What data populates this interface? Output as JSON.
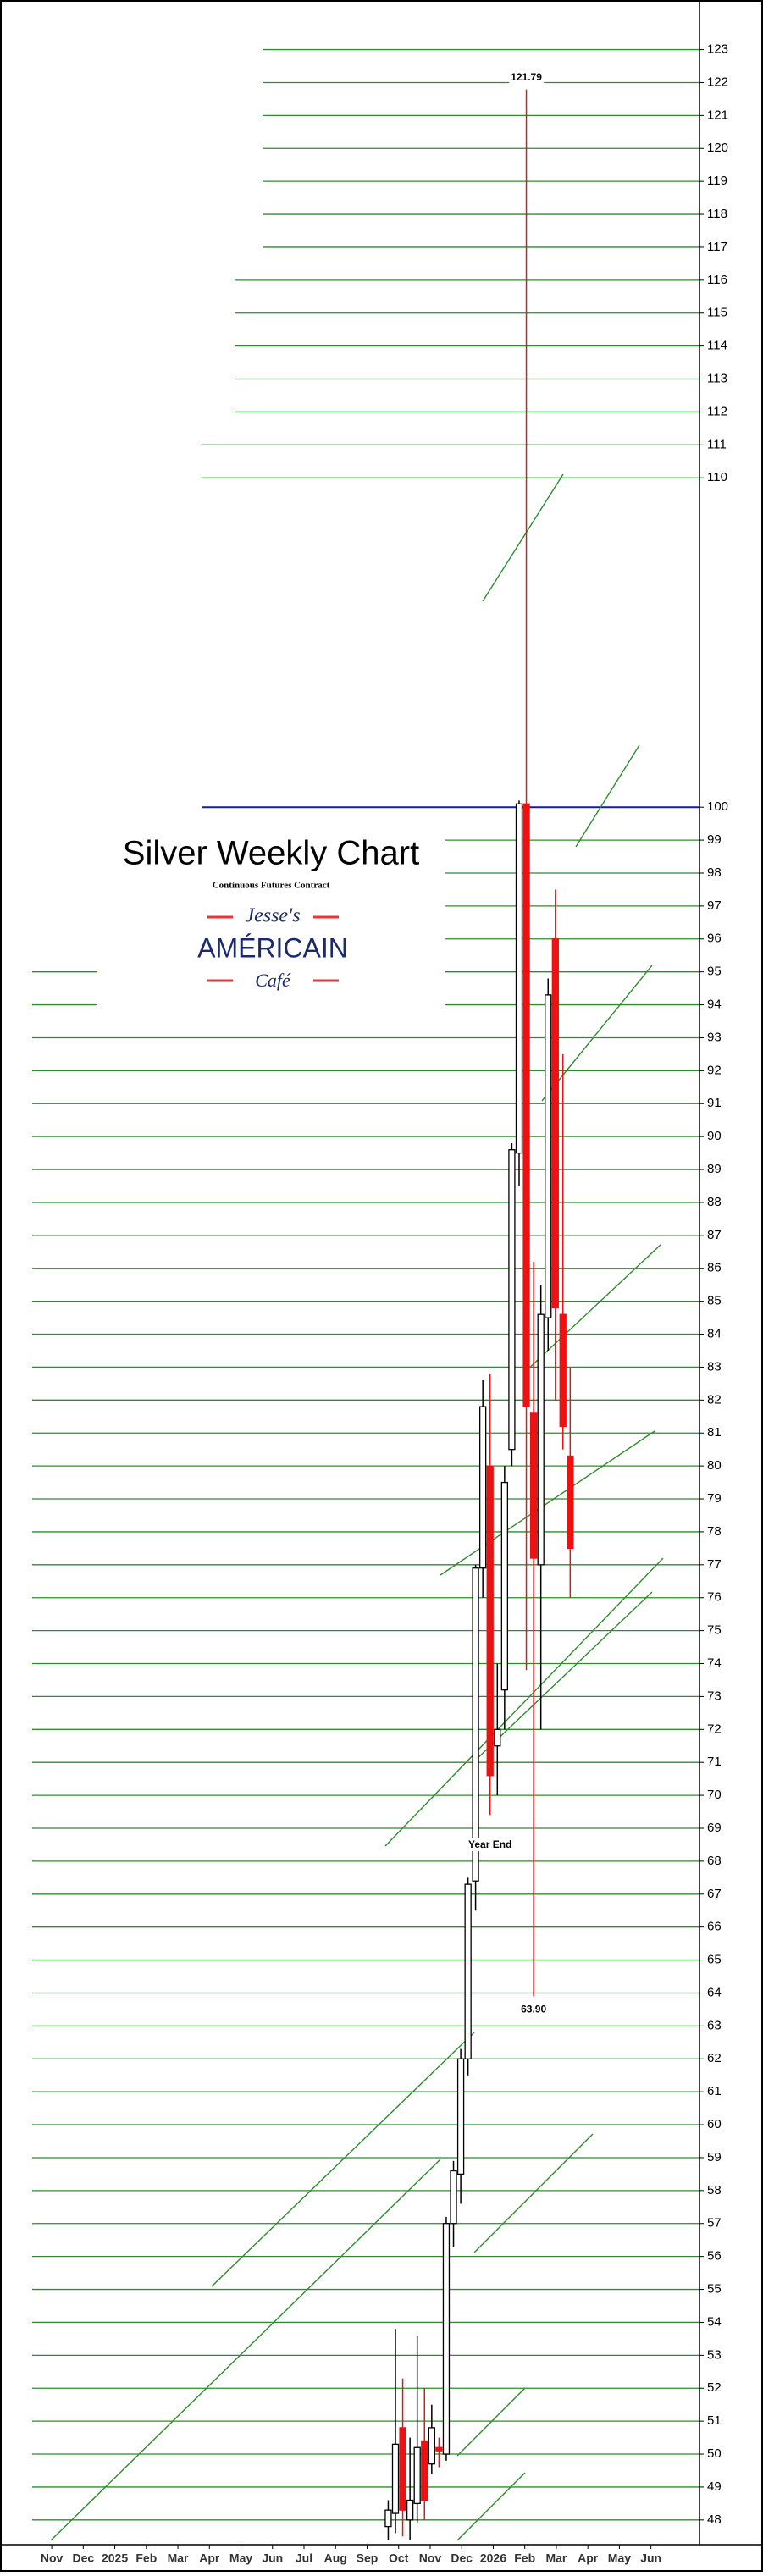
{
  "chart_data": {
    "type": "candlestick",
    "title": "Silver Weekly Chart",
    "subtitle": "Continuous Futures Contract",
    "logo": [
      "Jesse's",
      "AMÉRICAIN",
      "Café"
    ],
    "xlim": [
      -0.62,
      20.54
    ],
    "xticks": [
      {
        "value": 0,
        "label": "Nov"
      },
      {
        "value": 1,
        "label": "Dec"
      },
      {
        "value": 2,
        "label": "2025"
      },
      {
        "value": 3,
        "label": "Feb"
      },
      {
        "value": 4,
        "label": "Mar"
      },
      {
        "value": 5,
        "label": "Apr"
      },
      {
        "value": 6,
        "label": "May"
      },
      {
        "value": 7,
        "label": "Jun"
      },
      {
        "value": 8,
        "label": "Jul"
      },
      {
        "value": 9,
        "label": "Aug"
      },
      {
        "value": 10,
        "label": "Sep"
      },
      {
        "value": 11,
        "label": "Oct"
      },
      {
        "value": 12,
        "label": "Nov"
      },
      {
        "value": 13,
        "label": "Dec"
      },
      {
        "value": 14,
        "label": "2026"
      },
      {
        "value": 15,
        "label": "Feb"
      },
      {
        "value": 16,
        "label": "Mar"
      },
      {
        "value": 17,
        "label": "Apr"
      },
      {
        "value": 18,
        "label": "May"
      },
      {
        "value": 19,
        "label": "Jun"
      }
    ],
    "ylim": [
      47.25,
      124.3
    ],
    "yticks": [
      48,
      49,
      50,
      51,
      52,
      53,
      54,
      55,
      56,
      57,
      58,
      59,
      60,
      61,
      62,
      63,
      64,
      65,
      66,
      67,
      68,
      69,
      70,
      71,
      72,
      73,
      74,
      75,
      76,
      77,
      78,
      79,
      80,
      81,
      82,
      83,
      84,
      85,
      86,
      87,
      88,
      89,
      90,
      91,
      92,
      93,
      94,
      95,
      96,
      97,
      98,
      99,
      100,
      110,
      111,
      112,
      113,
      114,
      115,
      116,
      117,
      118,
      119,
      120,
      121,
      122,
      123
    ],
    "grid": true,
    "grid_color": "#2e8b2e",
    "reference_line": {
      "value": 100,
      "color": "#1a1a9c"
    },
    "up_color": "#ffffff",
    "down_color": "#ee1111",
    "x": [
      10.67,
      10.9,
      11.13,
      11.36,
      11.59,
      11.82,
      12.05,
      12.28,
      12.51,
      12.74,
      12.97,
      13.2,
      13.44,
      13.67,
      13.9,
      14.13,
      14.36,
      14.59,
      14.82,
      15.05,
      15.28,
      15.51,
      15.74,
      15.97,
      16.21,
      16.44
    ],
    "open": [
      47.8,
      48.2,
      50.8,
      48.0,
      48.5,
      50.4,
      49.7,
      50.2,
      50.0,
      57.0,
      58.5,
      62.0,
      67.4,
      76.9,
      80.0,
      71.5,
      73.2,
      80.5,
      89.5,
      100.1,
      81.6,
      77.0,
      84.5,
      96.0,
      84.6,
      80.3
    ],
    "high": [
      48.6,
      53.8,
      52.3,
      50.5,
      53.6,
      52.0,
      51.5,
      50.5,
      57.2,
      58.9,
      62.3,
      67.5,
      77.0,
      82.6,
      82.8,
      74.0,
      80.0,
      89.8,
      100.2,
      121.79,
      86.2,
      85.5,
      94.8,
      97.5,
      92.5,
      83.0
    ],
    "low": [
      47.4,
      47.6,
      47.5,
      47.4,
      47.9,
      48.0,
      49.4,
      49.6,
      49.8,
      56.3,
      57.6,
      61.5,
      66.5,
      76.0,
      69.4,
      70.0,
      72.0,
      80.0,
      88.5,
      73.8,
      63.9,
      72.0,
      83.5,
      82.0,
      80.5,
      76.0
    ],
    "close": [
      48.3,
      50.3,
      48.3,
      48.6,
      50.2,
      48.6,
      50.8,
      50.1,
      57.0,
      58.6,
      62.0,
      67.3,
      76.9,
      81.8,
      70.6,
      72.0,
      79.5,
      89.6,
      100.1,
      81.8,
      77.2,
      84.6,
      94.3,
      84.8,
      81.2,
      77.5
    ],
    "annotations": [
      {
        "text": "121.79",
        "x": 15.05,
        "y": 121.79
      },
      {
        "text": "63.90",
        "x": 15.28,
        "y": 63.9
      },
      {
        "text": "Year End",
        "x": 13.9,
        "y": 68.9
      }
    ]
  }
}
